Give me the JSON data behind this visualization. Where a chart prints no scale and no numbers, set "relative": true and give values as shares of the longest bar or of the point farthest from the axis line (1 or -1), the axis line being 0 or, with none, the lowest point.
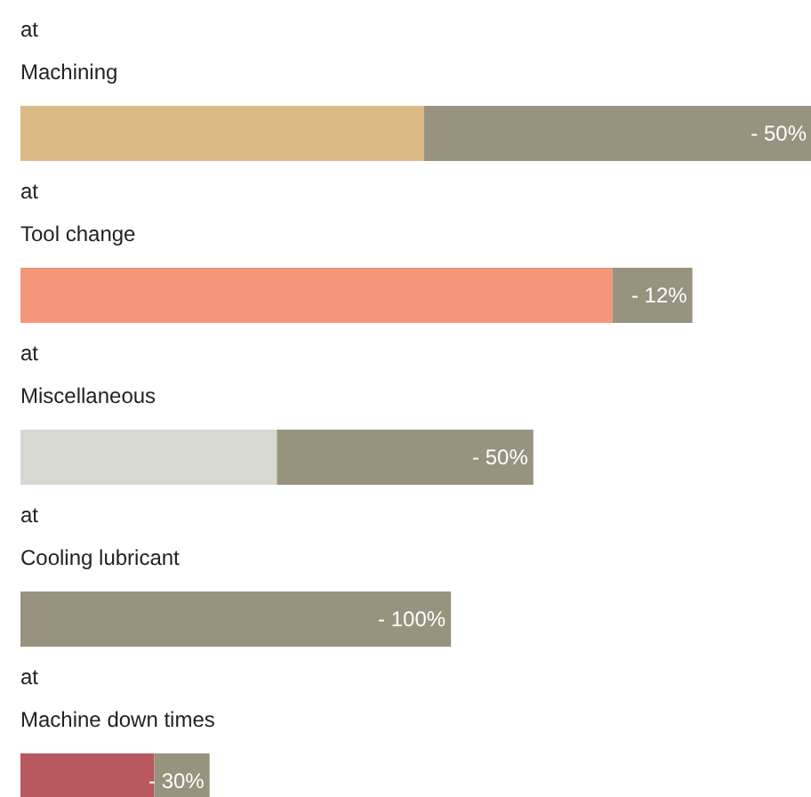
{
  "chart_data": {
    "type": "bar",
    "orientation": "horizontal",
    "stacked": true,
    "relative": true,
    "grid": false,
    "tick_labels": false,
    "categories": [
      "at\nMachining",
      "at\nTool change",
      "at\nMiscellaneous",
      "at\nCooling lubricant",
      "at\nMachine down times"
    ],
    "series": [
      {
        "colors": [
          "#dab985",
          "#f5967a",
          "#d8d8d3",
          "#97937f",
          "#b8595f"
        ],
        "values": [
          0.51,
          0.748,
          0.324,
          0,
          0.169
        ]
      },
      {
        "color": "#97937f",
        "values": [
          0.49,
          0.101,
          0.324,
          0.544,
          0.07
        ]
      }
    ],
    "annotations": [
      {
        "text": "- 50%",
        "x": 1.0,
        "y": "at\nMachining"
      },
      {
        "text": "- 12%",
        "x": 0.849,
        "y": "at\nTool change"
      },
      {
        "text": "- 50%",
        "x": 0.648,
        "y": "at\nMiscellaneous"
      },
      {
        "text": "- 100%",
        "x": 0.544,
        "y": "at\nCooling lubricant"
      },
      {
        "text": "- 30%",
        "x": 0.239,
        "y": "at\nMachine down times"
      }
    ]
  }
}
